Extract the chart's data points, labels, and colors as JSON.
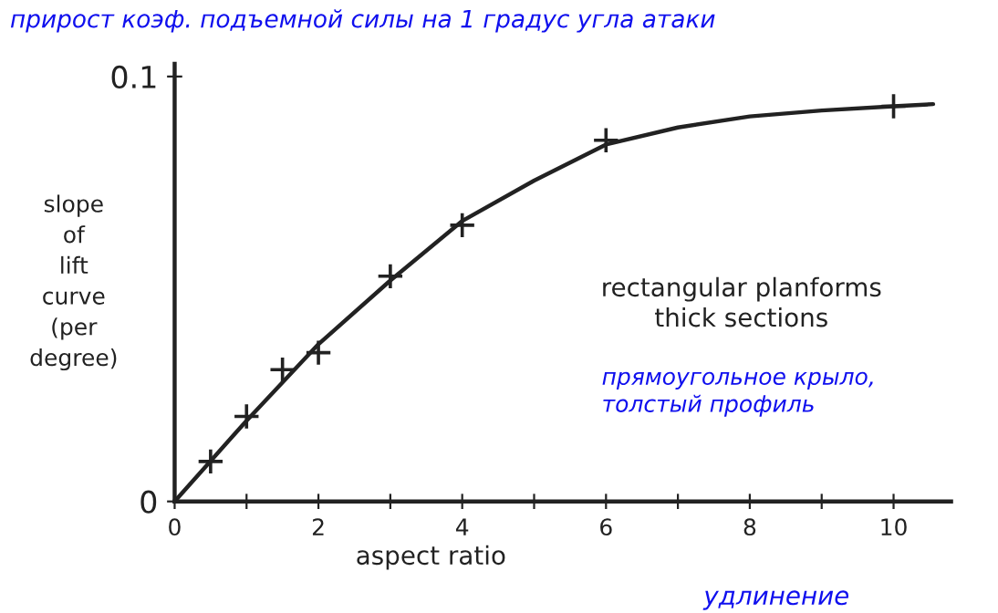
{
  "chart_data": {
    "type": "line",
    "title": "прирост коэф. подъемной силы на 1 градус угла атаки",
    "xlabel": "aspect ratio",
    "ylabel": "slope\nof\nlift\ncurve\n(per\ndegree)",
    "annotations": [
      "rectangular planforms\nthick sections",
      "прямоугольное крыло,\nтолстый профиль",
      "удлинение"
    ],
    "xlim": [
      0,
      10.8
    ],
    "ylim": [
      0,
      0.103
    ],
    "xticks": [
      0,
      {
        "value": 1,
        "label": null
      },
      2,
      {
        "value": 3,
        "label": null
      },
      4,
      {
        "value": 5,
        "label": null
      },
      6,
      {
        "value": 7,
        "label": null
      },
      8,
      {
        "value": 9,
        "label": null
      },
      10
    ],
    "yticks": [
      0,
      0.1
    ],
    "grid": false,
    "legend": false,
    "series": [
      {
        "color": "#222222",
        "marker": "none",
        "line_style": "solid",
        "x": [
          0,
          1,
          2,
          3,
          4,
          5,
          6,
          7,
          8,
          9,
          10,
          10.55
        ],
        "values": [
          0,
          0.019,
          0.037,
          0.052,
          0.066,
          0.0755,
          0.084,
          0.088,
          0.0906,
          0.092,
          0.093,
          0.0935
        ]
      },
      {
        "type": "scatter",
        "color": "#222222",
        "marker": "cross",
        "x": [
          0.5,
          1,
          1.5,
          2,
          3,
          4,
          6,
          10
        ],
        "values": [
          0.0094,
          0.02,
          0.031,
          0.035,
          0.053,
          0.065,
          0.085,
          0.093
        ]
      }
    ]
  }
}
